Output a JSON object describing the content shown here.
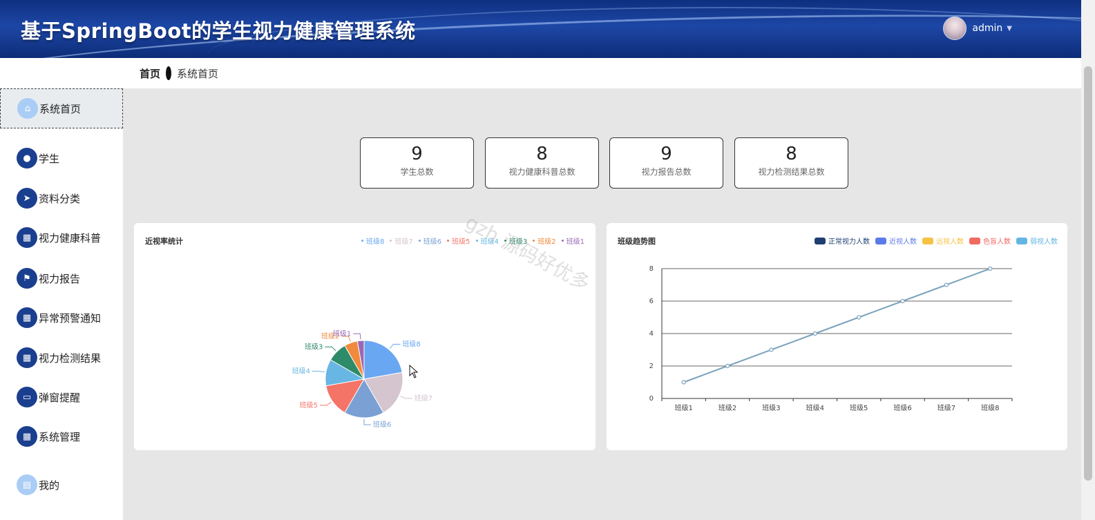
{
  "header": {
    "title": "基于SpringBoot的学生视力健康管理系统",
    "user": "admin"
  },
  "breadcrumb": {
    "home": "首页",
    "current": "系统首页"
  },
  "sidebar": {
    "items": [
      {
        "label": "系统首页",
        "icon": "home-icon"
      },
      {
        "label": "学生",
        "icon": "bulb-icon"
      },
      {
        "label": "资料分类",
        "icon": "send-icon"
      },
      {
        "label": "视力健康科普",
        "icon": "grid-icon"
      },
      {
        "label": "视力报告",
        "icon": "flag-icon"
      },
      {
        "label": "异常预警通知",
        "icon": "grid-icon"
      },
      {
        "label": "视力检测结果",
        "icon": "grid-icon"
      },
      {
        "label": "弹窗提醒",
        "icon": "message-icon"
      },
      {
        "label": "系统管理",
        "icon": "grid-icon"
      },
      {
        "label": "我的",
        "icon": "card-icon"
      }
    ]
  },
  "stats": [
    {
      "value": "9",
      "label": "学生总数"
    },
    {
      "value": "8",
      "label": "视力健康科普总数"
    },
    {
      "value": "9",
      "label": "视力报告总数"
    },
    {
      "value": "8",
      "label": "视力检测结果总数"
    }
  ],
  "watermark": "gzh 源码好优多",
  "pie_card": {
    "title": "近视率统计"
  },
  "line_card": {
    "title": "班级趋势图"
  },
  "colors": {
    "header": "#1a3f94",
    "accent": "#1b3f8f"
  },
  "chart_data": [
    {
      "type": "pie",
      "title": "近视率统计",
      "legend_position": "top-right",
      "legend": [
        "班级8",
        "班级7",
        "班级6",
        "班级5",
        "班级4",
        "班级3",
        "班级2",
        "班级1"
      ],
      "slices": [
        {
          "name": "班级8",
          "value": 8,
          "color": "#6aa7f2"
        },
        {
          "name": "班级7",
          "value": 7,
          "color": "#d4c5cf"
        },
        {
          "name": "班级6",
          "value": 6,
          "color": "#7aa0d4"
        },
        {
          "name": "班级5",
          "value": 5,
          "color": "#f47467"
        },
        {
          "name": "班级4",
          "value": 4,
          "color": "#68b6e3"
        },
        {
          "name": "班级3",
          "value": 3,
          "color": "#2e8b6a"
        },
        {
          "name": "班级2",
          "value": 2,
          "color": "#f08a3c"
        },
        {
          "name": "班级1",
          "value": 1,
          "color": "#9a69b6"
        }
      ]
    },
    {
      "type": "line",
      "title": "班级趋势图",
      "legend_position": "top-right",
      "legend": [
        {
          "name": "正常视力人数",
          "color": "#1f3f73"
        },
        {
          "name": "近视人数",
          "color": "#5b7be8"
        },
        {
          "name": "远视人数",
          "color": "#f6c244"
        },
        {
          "name": "色盲人数",
          "color": "#f06a62"
        },
        {
          "name": "弱视人数",
          "color": "#63b6e3"
        }
      ],
      "categories": [
        "班级1",
        "班级2",
        "班级3",
        "班级4",
        "班级5",
        "班级6",
        "班级7",
        "班级8"
      ],
      "series": [
        {
          "values": [
            1,
            2,
            3,
            4,
            5,
            6,
            7,
            8
          ],
          "color": "#7ba3bd"
        }
      ],
      "ylim": [
        0,
        8
      ],
      "yticks": [
        0,
        2,
        4,
        6,
        8
      ],
      "grid": true
    }
  ]
}
